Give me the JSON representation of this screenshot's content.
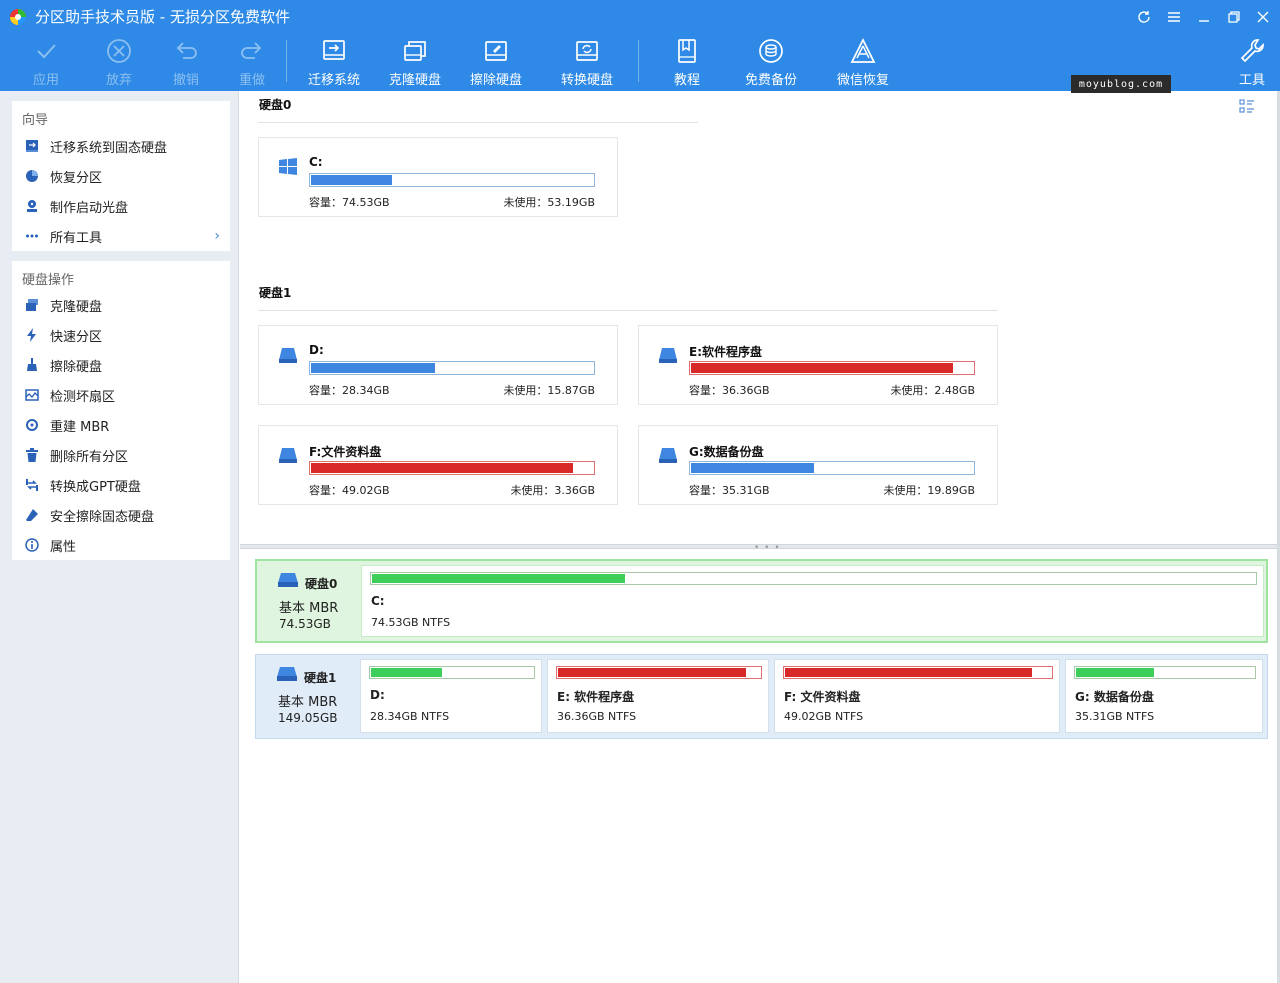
{
  "window": {
    "title": "分区助手技术员版 - 无损分区免费软件"
  },
  "toolbar": {
    "apply": "应用",
    "discard": "放弃",
    "undo": "撤销",
    "redo": "重做",
    "migrate_os": "迁移系统",
    "clone_disk": "克隆硬盘",
    "wipe_disk": "擦除硬盘",
    "convert_disk": "转换硬盘",
    "tutorial": "教程",
    "free_backup": "免费备份",
    "wechat_recovery": "微信恢复",
    "tools": "工具"
  },
  "watermark": "moyublog.com",
  "sidebar": {
    "wizard_title": "向导",
    "wizard_items": [
      {
        "label": "迁移系统到固态硬盘",
        "icon": "migrate-icon"
      },
      {
        "label": "恢复分区",
        "icon": "recover-icon"
      },
      {
        "label": "制作启动光盘",
        "icon": "bootdisk-icon"
      },
      {
        "label": "所有工具",
        "icon": "more-icon"
      }
    ],
    "disk_ops_title": "硬盘操作",
    "disk_ops_items": [
      {
        "label": "克隆硬盘",
        "icon": "clone-icon"
      },
      {
        "label": "快速分区",
        "icon": "lightning-icon"
      },
      {
        "label": "擦除硬盘",
        "icon": "broom-icon"
      },
      {
        "label": "检测坏扇区",
        "icon": "scan-icon"
      },
      {
        "label": "重建 MBR",
        "icon": "rebuild-icon"
      },
      {
        "label": "删除所有分区",
        "icon": "trash-icon"
      },
      {
        "label": "转换成GPT硬盘",
        "icon": "convert-icon"
      },
      {
        "label": "安全擦除固态硬盘",
        "icon": "eraser-icon"
      },
      {
        "label": "属性",
        "icon": "info-icon"
      }
    ]
  },
  "disks_view": {
    "disk0": {
      "header": "硬盘0",
      "partitions": [
        {
          "name": "C:",
          "capacity": "容量：74.53GB",
          "free": "未使用：53.19GB",
          "used_fraction": 0.286,
          "status": "normal",
          "icon": "windows-icon"
        }
      ]
    },
    "disk1": {
      "header": "硬盘1",
      "partitions": [
        {
          "name": "D:",
          "capacity": "容量：28.34GB",
          "free": "未使用：15.87GB",
          "used_fraction": 0.44,
          "status": "normal",
          "icon": "drive-icon"
        },
        {
          "name": "E:软件程序盘",
          "capacity": "容量：36.36GB",
          "free": "未使用：2.48GB",
          "used_fraction": 0.93,
          "status": "full",
          "icon": "drive-icon"
        },
        {
          "name": "F:文件资料盘",
          "capacity": "容量：49.02GB",
          "free": "未使用：3.36GB",
          "used_fraction": 0.93,
          "status": "full",
          "icon": "drive-icon"
        },
        {
          "name": "G:数据备份盘",
          "capacity": "容量：35.31GB",
          "free": "未使用：19.89GB",
          "used_fraction": 0.437,
          "status": "normal",
          "icon": "drive-icon"
        }
      ]
    }
  },
  "disk_map": [
    {
      "name": "硬盘0",
      "type": "基本 MBR",
      "size": "74.53GB",
      "selected": true,
      "partitions": [
        {
          "name": "C:",
          "info": "74.53GB NTFS",
          "used_fraction": 0.286,
          "status": "normal"
        }
      ]
    },
    {
      "name": "硬盘1",
      "type": "基本 MBR",
      "size": "149.05GB",
      "selected": false,
      "partitions": [
        {
          "name": "D:",
          "info": "28.34GB NTFS",
          "used_fraction": 0.44,
          "status": "normal"
        },
        {
          "name": "E: 软件程序盘",
          "info": "36.36GB NTFS",
          "used_fraction": 0.93,
          "status": "full"
        },
        {
          "name": "F: 文件资料盘",
          "info": "49.02GB NTFS",
          "used_fraction": 0.93,
          "status": "full"
        },
        {
          "name": "G: 数据备份盘",
          "info": "35.31GB NTFS",
          "used_fraction": 0.437,
          "status": "normal"
        }
      ]
    }
  ],
  "colors": {
    "titlebar": "#2e8ae6",
    "bar_normal": "#3f86e0",
    "bar_full": "#d92a2a",
    "map_normal": "#3ecf5a",
    "selected_row": "#dff5df"
  }
}
